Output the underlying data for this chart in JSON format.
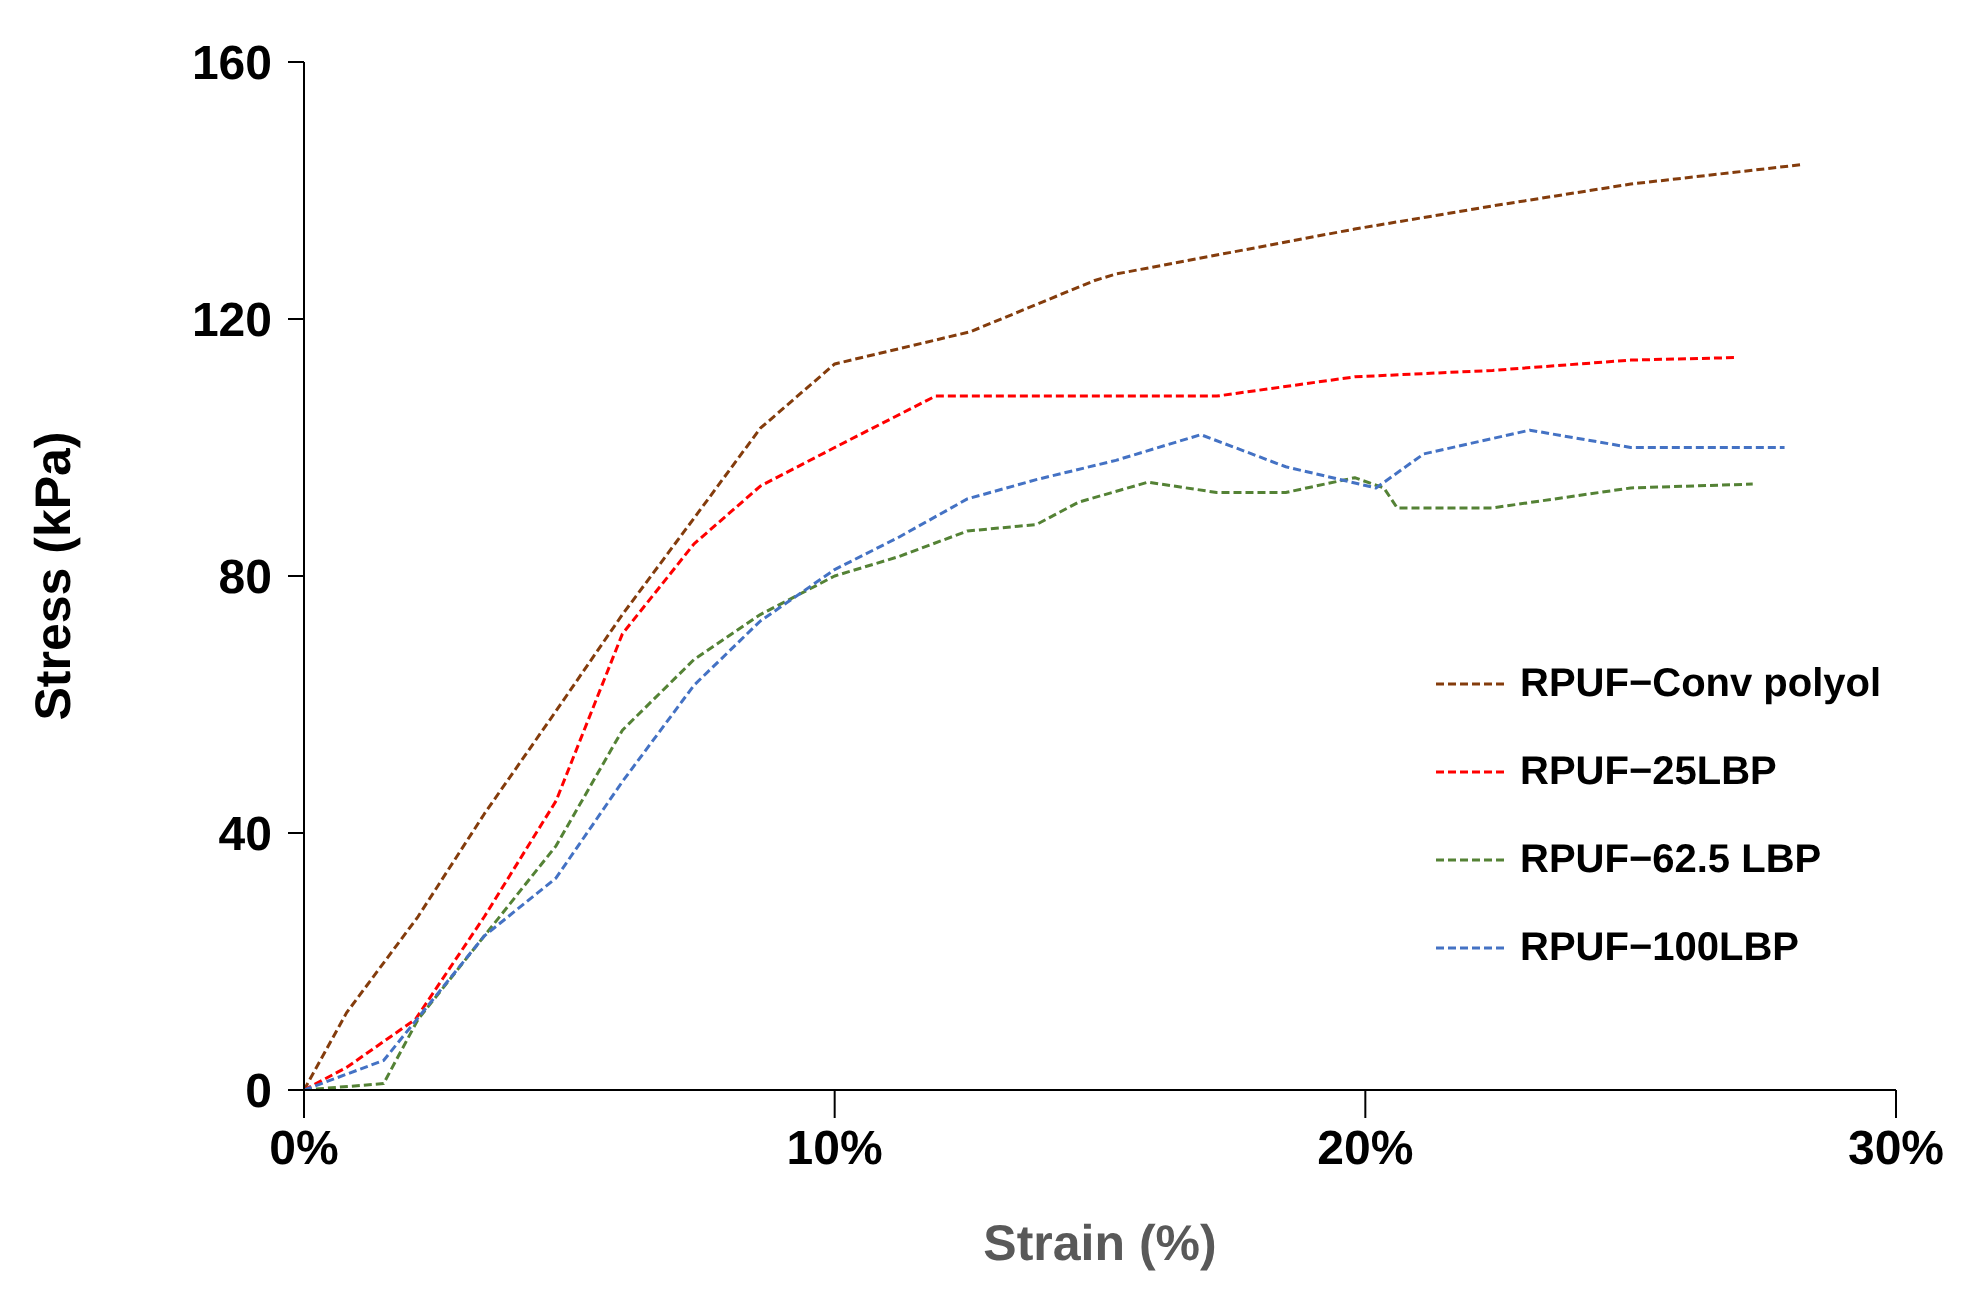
{
  "chart_data": {
    "type": "line",
    "xlabel": "Strain (%)",
    "ylabel": "Stress (kPa)",
    "xlim": [
      0,
      30
    ],
    "xticks": [
      {
        "value": 0,
        "label": "0%"
      },
      {
        "value": 10,
        "label": "10%"
      },
      {
        "value": 20,
        "label": "20%"
      },
      {
        "value": 30,
        "label": "30%"
      }
    ],
    "ylim": [
      0,
      160
    ],
    "yticks": [
      0,
      40,
      80,
      120,
      160
    ],
    "grid": false,
    "legend": "right",
    "marker": "none",
    "line_style": "dashed",
    "series": [
      {
        "name": "RPUF−Conv polyol",
        "color": "#843c0c",
        "x": [
          0,
          0.8,
          2.15,
          3.4,
          4.75,
          6,
          7.35,
          8.6,
          10,
          12.55,
          14.9,
          15.3,
          19.8,
          22.4,
          25,
          28.2
        ],
        "values": [
          0,
          12,
          27,
          43,
          59,
          74,
          89,
          103,
          113,
          118,
          126,
          127,
          134,
          137.6,
          141,
          144
        ]
      },
      {
        "name": "RPUF−25LBP",
        "color": "#ff0000",
        "x": [
          0,
          0.8,
          2.1,
          3.4,
          4.75,
          6,
          7.35,
          8.6,
          10,
          11.9,
          15.3,
          17.2,
          19.8,
          22.4,
          25,
          27
        ],
        "values": [
          0,
          3.5,
          11,
          27,
          45,
          71,
          85,
          94,
          100,
          108,
          108,
          108,
          111,
          112,
          113.6,
          114
        ]
      },
      {
        "name": "RPUF−62.5 LBP",
        "color": "#548235",
        "x": [
          0,
          1.5,
          2.15,
          3.4,
          4.75,
          6,
          7.35,
          8.6,
          10,
          11.2,
          12.5,
          13.8,
          14.6,
          15.9,
          17.2,
          18.5,
          19.8,
          20.35,
          20.6,
          22.4,
          25,
          27.3
        ],
        "values": [
          0,
          1,
          11,
          24,
          38,
          56,
          67,
          74,
          80,
          83,
          87,
          88,
          91.5,
          94.6,
          93,
          93,
          95.3,
          93.7,
          90.6,
          90.6,
          93.7,
          94.3
        ]
      },
      {
        "name": "RPUF−100LBP",
        "color": "#4472c4",
        "x": [
          0,
          1.5,
          3.4,
          4.75,
          6,
          7.35,
          8.6,
          10,
          11.2,
          12.5,
          13.8,
          15.3,
          16.9,
          18.5,
          20.2,
          21.1,
          23.1,
          25,
          27.9
        ],
        "values": [
          0,
          4.6,
          24,
          33,
          48,
          63,
          73,
          81,
          86,
          92,
          95,
          98,
          102,
          97,
          93.7,
          99,
          102.7,
          100,
          100
        ]
      }
    ]
  }
}
